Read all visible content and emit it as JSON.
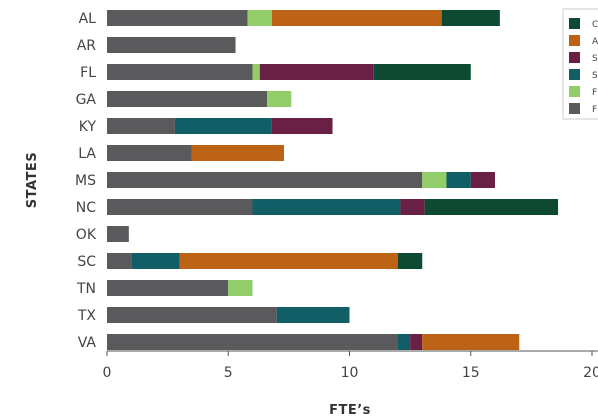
{
  "chart_data": {
    "type": "bar",
    "orientation": "horizontal",
    "stacked": true,
    "title": "",
    "xlabel": "FTE’s",
    "ylabel": "STATES",
    "xlim": [
      0,
      20
    ],
    "xticks": [
      "0",
      "5",
      "10",
      "15",
      "20"
    ],
    "grid": false,
    "legend_position": "right",
    "categories": [
      "AL",
      "AR",
      "FL",
      "GA",
      "KY",
      "LA",
      "MS",
      "NC",
      "OK",
      "SC",
      "TN",
      "TX",
      "VA"
    ],
    "series": [
      {
        "key": "s1",
        "legend_label": "F",
        "color": "#5a5a5c",
        "values": [
          5.8,
          5.3,
          6.0,
          6.6,
          2.8,
          3.5,
          13.0,
          6.0,
          0.9,
          1.0,
          5.0,
          7.0,
          12.0
        ]
      },
      {
        "key": "s2",
        "legend_label": "F",
        "color": "#92cd6a",
        "values": [
          1.0,
          0,
          0.3,
          1.0,
          0,
          0,
          1.0,
          0,
          0,
          0,
          1.0,
          0,
          0
        ]
      },
      {
        "key": "s3",
        "legend_label": "S",
        "color": "#125e67",
        "values": [
          0,
          0,
          0,
          0,
          4.0,
          0,
          1.0,
          6.1,
          0,
          2.0,
          0,
          3.0,
          0.5
        ]
      },
      {
        "key": "s4",
        "legend_label": "S",
        "color": "#6a1f45",
        "values": [
          0,
          0,
          4.7,
          0,
          2.5,
          0,
          1.0,
          1.0,
          0,
          0,
          0,
          0,
          0.5
        ]
      },
      {
        "key": "s5",
        "legend_label": "A",
        "color": "#bd6316",
        "values": [
          7.0,
          0,
          0,
          0,
          0,
          3.8,
          0,
          0,
          0,
          9.0,
          0,
          0,
          4.0
        ]
      },
      {
        "key": "s6",
        "legend_label": "C",
        "color": "#0e4a31",
        "values": [
          2.4,
          0,
          4.0,
          0,
          0,
          0,
          0,
          5.5,
          0,
          1.0,
          0,
          0,
          0
        ]
      }
    ]
  }
}
